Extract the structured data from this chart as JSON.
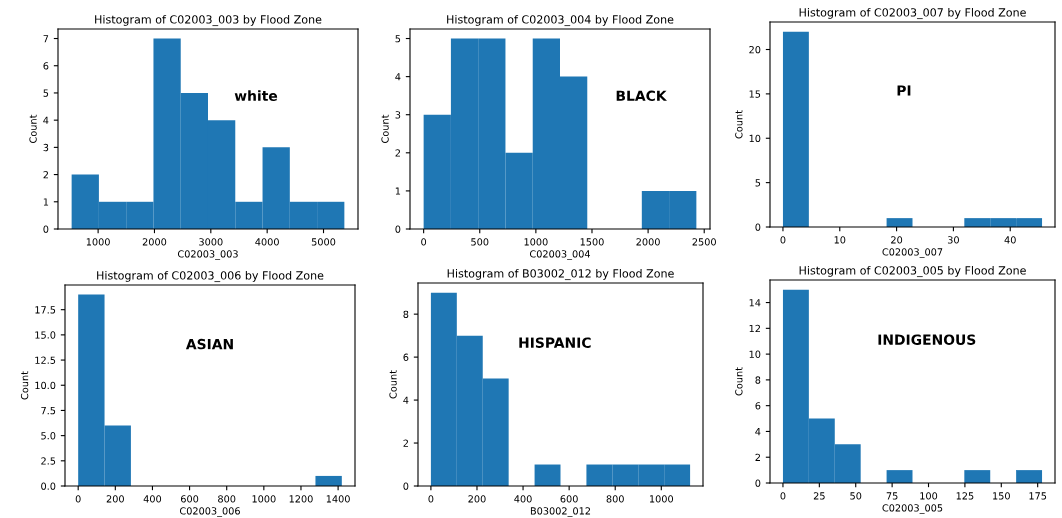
{
  "chart_data": [
    {
      "type": "histogram",
      "title": "Histogram of C02003_003 by Flood Zone",
      "xlabel": "C02003_003",
      "ylabel": "Count",
      "color": "#1f77b4",
      "annotations": [
        "white"
      ],
      "bins": [
        530,
        1014,
        1498,
        1982,
        2466,
        2950,
        3434,
        3918,
        4402,
        4886,
        5370
      ],
      "values": [
        2,
        1,
        1,
        7,
        5,
        4,
        1,
        3,
        1,
        1
      ],
      "xlim": [
        288,
        5612
      ],
      "ylim": [
        0,
        7.35
      ],
      "xticks": [
        1000,
        2000,
        3000,
        4000,
        5000
      ],
      "yticks": [
        0,
        1,
        2,
        3,
        4,
        5,
        6,
        7
      ],
      "grid": false
    },
    {
      "type": "histogram",
      "title": "Histogram of C02003_004 by Flood Zone",
      "xlabel": "C02003_004",
      "ylabel": "Count",
      "color": "#1f77b4",
      "annotations": [
        "BLACK"
      ],
      "bins": [
        0,
        243,
        486,
        729,
        972,
        1215,
        1458,
        1701,
        1944,
        2187,
        2430
      ],
      "values": [
        3,
        5,
        5,
        2,
        5,
        4,
        0,
        0,
        1,
        1
      ],
      "xlim": [
        -121.5,
        2551.5
      ],
      "ylim": [
        0,
        5.25
      ],
      "xticks": [
        0,
        500,
        1000,
        1500,
        2000,
        2500
      ],
      "yticks": [
        0,
        1,
        2,
        3,
        4,
        5
      ],
      "grid": false
    },
    {
      "type": "histogram",
      "title": "Histogram of C02003_007 by Flood Zone",
      "xlabel": "C02003_007",
      "ylabel": "Count",
      "color": "#1f77b4",
      "annotations": [
        "PI"
      ],
      "bins": [
        0,
        4.56,
        9.12,
        13.68,
        18.24,
        22.8,
        27.36,
        31.92,
        36.48,
        41.04,
        45.6
      ],
      "values": [
        22,
        0,
        0,
        0,
        1,
        0,
        0,
        1,
        1,
        1
      ],
      "xlim": [
        -2.28,
        47.88
      ],
      "ylim": [
        0,
        23.1
      ],
      "xticks": [
        0,
        10,
        20,
        30,
        40
      ],
      "yticks": [
        0,
        5,
        10,
        15,
        20
      ],
      "grid": false
    },
    {
      "type": "histogram",
      "title": "Histogram of C02003_006 by Flood Zone",
      "xlabel": "C02003_006",
      "ylabel": "Count",
      "color": "#1f77b4",
      "annotations": [
        "ASIAN"
      ],
      "bins": [
        0,
        142,
        284,
        426,
        568,
        710,
        852,
        994,
        1136,
        1278,
        1420
      ],
      "values": [
        19,
        6,
        0,
        0,
        0,
        0,
        0,
        0,
        0,
        1
      ],
      "xlim": [
        -71,
        1491
      ],
      "ylim": [
        0,
        19.95
      ],
      "xticks": [
        0,
        200,
        400,
        600,
        800,
        1000,
        1200,
        1400
      ],
      "yticks": [
        {
          "value": 0,
          "label": "0.0"
        },
        {
          "value": 2.5,
          "label": "2.5"
        },
        {
          "value": 5,
          "label": "5.0"
        },
        {
          "value": 7.5,
          "label": "7.5"
        },
        {
          "value": 10,
          "label": "10.0"
        },
        {
          "value": 12.5,
          "label": "12.5"
        },
        {
          "value": 15,
          "label": "15.0"
        },
        {
          "value": 17.5,
          "label": "17.5"
        }
      ],
      "grid": false
    },
    {
      "type": "histogram",
      "title": "Histogram of B03002_012 by Flood Zone",
      "xlabel": "B03002_012",
      "ylabel": "Count",
      "color": "#1f77b4",
      "annotations": [
        "HISPANIC"
      ],
      "bins": [
        0,
        112.5,
        225,
        337.5,
        450,
        562.5,
        675,
        787.5,
        900,
        1012.5,
        1125
      ],
      "values": [
        9,
        7,
        5,
        0,
        1,
        0,
        1,
        1,
        1,
        1
      ],
      "xlim": [
        -56,
        1181
      ],
      "ylim": [
        0,
        9.45
      ],
      "xticks": [
        0,
        200,
        400,
        600,
        800,
        1000
      ],
      "yticks": [
        0,
        2,
        4,
        6,
        8
      ],
      "grid": false
    },
    {
      "type": "histogram",
      "title": "Histogram of C02003_005 by Flood Zone",
      "xlabel": "C02003_005",
      "ylabel": "Count",
      "color": "#1f77b4",
      "annotations": [
        "INDIGENOUS"
      ],
      "bins": [
        0,
        17.8,
        35.6,
        53.4,
        71.2,
        89,
        106.8,
        124.6,
        142.4,
        160.2,
        178
      ],
      "values": [
        15,
        5,
        3,
        0,
        1,
        0,
        0,
        1,
        0,
        1
      ],
      "xlim": [
        -8.9,
        186.9
      ],
      "ylim": [
        0,
        15.75
      ],
      "xticks": [
        0,
        25,
        50,
        75,
        100,
        125,
        150,
        175
      ],
      "yticks": [
        0,
        2,
        4,
        6,
        8,
        10,
        12,
        14
      ],
      "grid": false
    }
  ]
}
